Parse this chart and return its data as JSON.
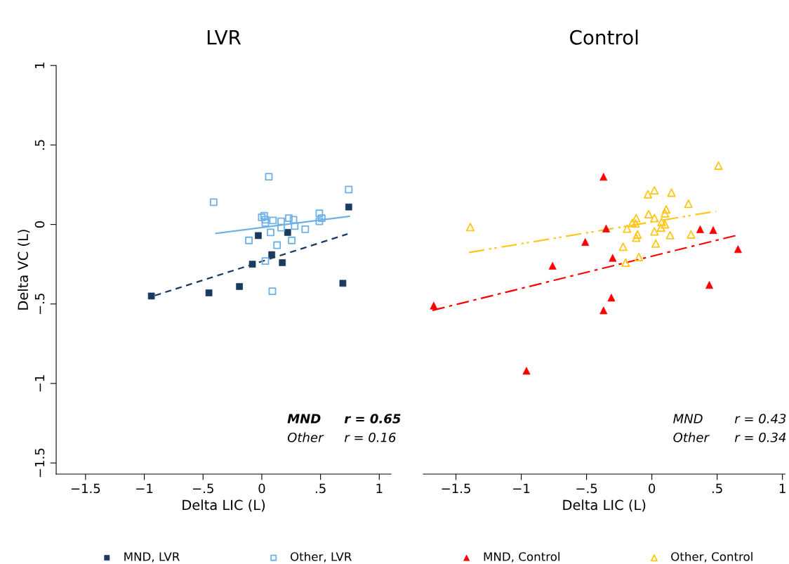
{
  "chart_data": [
    {
      "type": "scatter",
      "title": "LVR",
      "xlabel": "Delta LIC (L)",
      "ylabel": "Delta VC (L)",
      "xlim": [
        -1.75,
        1.1
      ],
      "ylim": [
        -1.57,
        1
      ],
      "xticks": [
        {
          "value": -1.5,
          "label": "−1.5"
        },
        {
          "value": -1,
          "label": "−1"
        },
        {
          "value": -0.5,
          "label": "−.5"
        },
        0,
        {
          "value": 0.5,
          "label": ".5"
        },
        1
      ],
      "yticks": [
        {
          "value": -1.5,
          "label": "−1.5"
        },
        {
          "value": -1,
          "label": "−1"
        },
        {
          "value": -0.5,
          "label": "−.5"
        },
        0,
        {
          "value": 0.5,
          "label": ".5"
        },
        1
      ],
      "grid": false,
      "legend": "bottom",
      "annotations": [
        "MND",
        "r = 0.65",
        "Other",
        "r = 0.16"
      ],
      "series": [
        {
          "name": "MND, LVR",
          "color": "#1a3a5f",
          "marker": "square",
          "x": [
            -0.94,
            -0.45,
            -0.19,
            -0.03,
            -0.08,
            0.085,
            0.175,
            0.22,
            0.69,
            0.74
          ],
          "values": [
            -0.45,
            -0.43,
            -0.39,
            -0.07,
            -0.25,
            -0.19,
            -0.24,
            -0.05,
            -0.37,
            0.11
          ]
        },
        {
          "name": "Other, LVR",
          "color": "#6cb0e8",
          "marker": "square_open",
          "x": [
            0.06,
            -0.41,
            0.74,
            0.0,
            0.02,
            0.03,
            0.03,
            0.095,
            0.165,
            0.165,
            0.23,
            0.27,
            0.28,
            0.37,
            0.49,
            0.51,
            0.49,
            0.075,
            -0.11,
            0.255,
            0.13,
            0.03,
            0.09
          ],
          "values": [
            0.3,
            0.14,
            0.22,
            0.045,
            0.055,
            0.03,
            0.01,
            0.025,
            0.02,
            -0.02,
            0.04,
            0.03,
            -0.01,
            -0.03,
            0.07,
            0.04,
            0.02,
            -0.05,
            -0.1,
            -0.1,
            -0.13,
            -0.23,
            -0.42
          ]
        },
        {
          "type": "line",
          "color": "#1a3a5f",
          "line_style": "dashed",
          "x": [
            -0.91,
            0.73
          ],
          "values": [
            -0.447,
            -0.06
          ]
        },
        {
          "type": "line",
          "color": "#6cb0e8",
          "line_style": "solid",
          "x": [
            -0.39,
            0.745
          ],
          "values": [
            -0.056,
            0.051
          ]
        }
      ]
    },
    {
      "type": "scatter",
      "title": "Control",
      "xlabel": "Delta LIC (L)",
      "xlim": [
        -1.75,
        1.02
      ],
      "ylim": [
        -1.57,
        1
      ],
      "xticks": [
        {
          "value": -1.5,
          "label": "−1.5"
        },
        {
          "value": -1,
          "label": "−1"
        },
        {
          "value": -0.5,
          "label": "−.5"
        },
        0,
        {
          "value": 0.5,
          "label": ".5"
        },
        1
      ],
      "tick_labels": "x",
      "grid": false,
      "legend": "bottom",
      "annotations": [
        "MND",
        "r = 0.43",
        "Other",
        "r = 0.34"
      ],
      "series": [
        {
          "name": "MND, Control",
          "color": "#ff0000",
          "marker": "triangle",
          "x": [
            -1.67,
            -0.96,
            -0.76,
            -0.51,
            -0.37,
            -0.35,
            -0.3,
            -0.31,
            -0.37,
            0.37,
            0.47,
            0.44,
            0.66
          ],
          "values": [
            -0.51,
            -0.92,
            -0.26,
            -0.11,
            0.3,
            -0.025,
            -0.21,
            -0.46,
            -0.54,
            -0.03,
            -0.035,
            -0.38,
            -0.155
          ]
        },
        {
          "name": "Other, Control",
          "color": "#ffc61a",
          "marker": "triangle_open",
          "x": [
            -1.39,
            0.51,
            -0.03,
            0.02,
            0.15,
            0.28,
            0.11,
            0.1,
            -0.025,
            0.02,
            -0.12,
            -0.15,
            -0.125,
            0.075,
            0.1,
            0.07,
            -0.19,
            0.02,
            -0.11,
            -0.12,
            0.14,
            0.3,
            -0.22,
            0.03,
            -0.2,
            -0.1
          ],
          "values": [
            -0.016,
            0.37,
            0.19,
            0.215,
            0.2,
            0.13,
            0.095,
            0.07,
            0.065,
            0.04,
            0.04,
            0.01,
            0.006,
            0.015,
            0.001,
            -0.02,
            -0.026,
            -0.044,
            -0.063,
            -0.083,
            -0.067,
            -0.063,
            -0.14,
            -0.12,
            -0.24,
            -0.205
          ]
        },
        {
          "type": "line",
          "color": "#ff0000",
          "line_style": "dashdot",
          "x": [
            -1.68,
            0.64
          ],
          "values": [
            -0.54,
            -0.07
          ]
        },
        {
          "type": "line",
          "color": "#ffc61a",
          "line_style": "dashdotdot",
          "x": [
            -1.4,
            0.49
          ],
          "values": [
            -0.176,
            0.083
          ]
        }
      ]
    }
  ]
}
